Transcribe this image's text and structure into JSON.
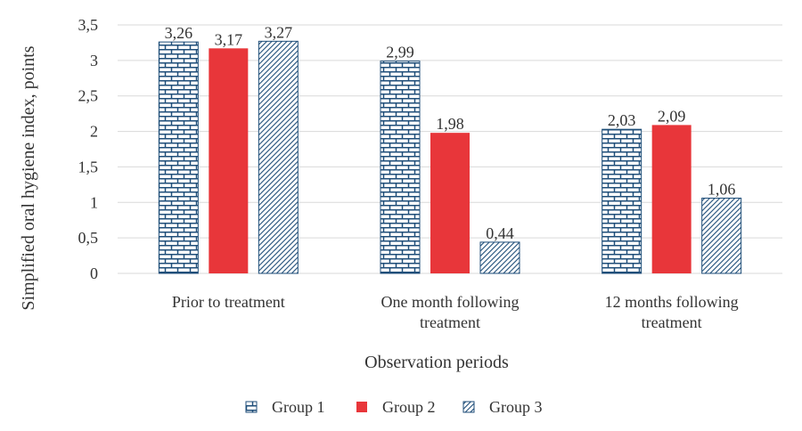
{
  "chart_data": {
    "type": "bar",
    "title": "",
    "xlabel": "Observation periods",
    "ylabel": "Simplified oral hygiene index, points",
    "ylim": [
      0,
      3.5
    ],
    "y_ticks": [
      "0",
      "0,5",
      "1",
      "1,5",
      "2",
      "2,5",
      "3",
      "3,5"
    ],
    "grid": true,
    "legend_position": "bottom",
    "categories": [
      [
        "Prior to treatment"
      ],
      [
        "One month following",
        "treatment"
      ],
      [
        "12 months following",
        "treatment"
      ]
    ],
    "series": [
      {
        "name": "Group 1",
        "values": [
          3.26,
          2.99,
          2.03
        ],
        "labels": [
          "3,26",
          "2,99",
          "2,03"
        ],
        "pattern": "brick",
        "color": "#1f4e79"
      },
      {
        "name": "Group 2",
        "values": [
          3.17,
          1.98,
          2.09
        ],
        "labels": [
          "3,17",
          "1,98",
          "2,09"
        ],
        "pattern": "solid",
        "color": "#e8363a"
      },
      {
        "name": "Group 3",
        "values": [
          3.27,
          0.44,
          1.06
        ],
        "labels": [
          "3,27",
          "0,44",
          "1,06"
        ],
        "pattern": "diagonal",
        "color": "#1f4e79"
      }
    ]
  }
}
